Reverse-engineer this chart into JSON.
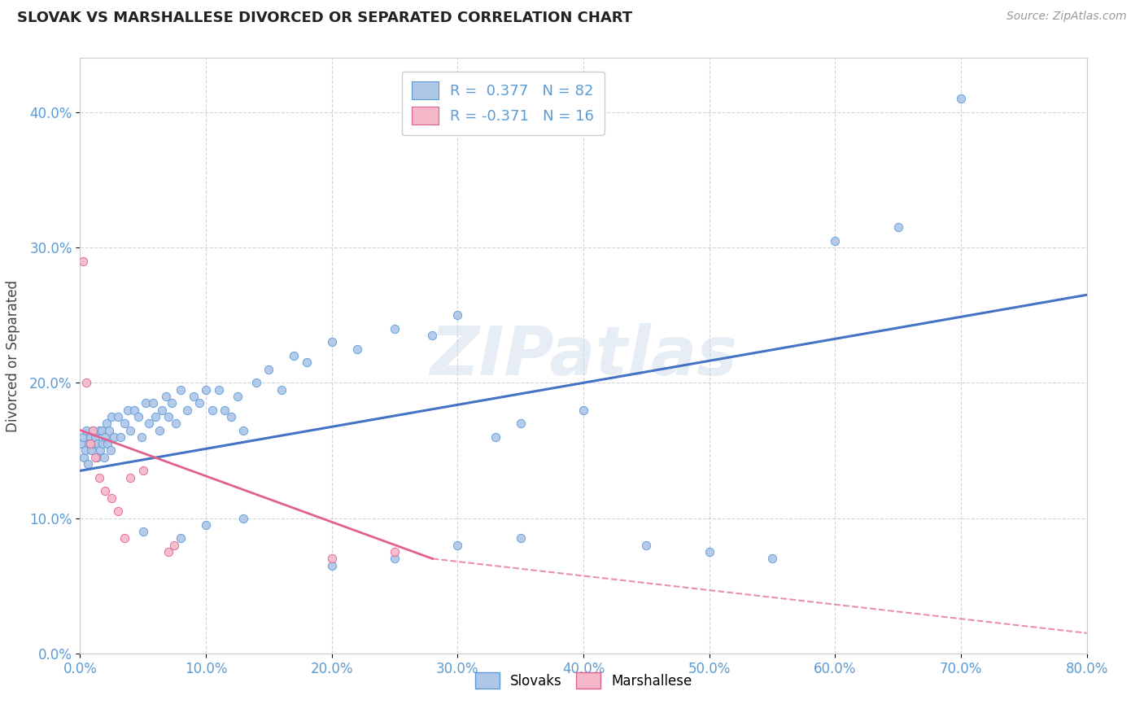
{
  "title": "SLOVAK VS MARSHALLESE DIVORCED OR SEPARATED CORRELATION CHART",
  "source": "Source: ZipAtlas.com",
  "ylabel": "Divorced or Separated",
  "xlim": [
    0.0,
    80.0
  ],
  "ylim": [
    0.0,
    44.0
  ],
  "yticks": [
    0.0,
    10.0,
    20.0,
    30.0,
    40.0
  ],
  "xticks": [
    0.0,
    10.0,
    20.0,
    30.0,
    40.0,
    50.0,
    60.0,
    70.0,
    80.0
  ],
  "blue_color": "#aec6e8",
  "pink_color": "#f4b8c8",
  "blue_edge_color": "#5b9bd5",
  "pink_edge_color": "#e06090",
  "blue_line_color": "#4472c4",
  "pink_line_color": "#e06090",
  "legend_blue_r": "0.377",
  "legend_blue_n": "82",
  "legend_pink_r": "-0.371",
  "legend_pink_n": "16",
  "watermark": "ZIPatlas",
  "blue_scatter": [
    [
      0.1,
      15.5
    ],
    [
      0.2,
      16.0
    ],
    [
      0.3,
      14.5
    ],
    [
      0.4,
      15.0
    ],
    [
      0.5,
      16.5
    ],
    [
      0.6,
      14.0
    ],
    [
      0.7,
      15.5
    ],
    [
      0.8,
      16.0
    ],
    [
      0.9,
      15.0
    ],
    [
      1.0,
      16.5
    ],
    [
      1.1,
      15.5
    ],
    [
      1.2,
      16.0
    ],
    [
      1.3,
      14.5
    ],
    [
      1.4,
      15.5
    ],
    [
      1.5,
      16.5
    ],
    [
      1.6,
      15.0
    ],
    [
      1.7,
      16.5
    ],
    [
      1.8,
      15.5
    ],
    [
      1.9,
      14.5
    ],
    [
      2.0,
      16.0
    ],
    [
      2.1,
      17.0
    ],
    [
      2.2,
      15.5
    ],
    [
      2.3,
      16.5
    ],
    [
      2.4,
      15.0
    ],
    [
      2.5,
      17.5
    ],
    [
      2.7,
      16.0
    ],
    [
      3.0,
      17.5
    ],
    [
      3.2,
      16.0
    ],
    [
      3.5,
      17.0
    ],
    [
      3.8,
      18.0
    ],
    [
      4.0,
      16.5
    ],
    [
      4.3,
      18.0
    ],
    [
      4.6,
      17.5
    ],
    [
      4.9,
      16.0
    ],
    [
      5.2,
      18.5
    ],
    [
      5.5,
      17.0
    ],
    [
      5.8,
      18.5
    ],
    [
      6.0,
      17.5
    ],
    [
      6.3,
      16.5
    ],
    [
      6.5,
      18.0
    ],
    [
      6.8,
      19.0
    ],
    [
      7.0,
      17.5
    ],
    [
      7.3,
      18.5
    ],
    [
      7.6,
      17.0
    ],
    [
      8.0,
      19.5
    ],
    [
      8.5,
      18.0
    ],
    [
      9.0,
      19.0
    ],
    [
      9.5,
      18.5
    ],
    [
      10.0,
      19.5
    ],
    [
      10.5,
      18.0
    ],
    [
      11.0,
      19.5
    ],
    [
      11.5,
      18.0
    ],
    [
      12.0,
      17.5
    ],
    [
      12.5,
      19.0
    ],
    [
      13.0,
      16.5
    ],
    [
      14.0,
      20.0
    ],
    [
      15.0,
      21.0
    ],
    [
      16.0,
      19.5
    ],
    [
      17.0,
      22.0
    ],
    [
      18.0,
      21.5
    ],
    [
      20.0,
      23.0
    ],
    [
      22.0,
      22.5
    ],
    [
      25.0,
      24.0
    ],
    [
      28.0,
      23.5
    ],
    [
      30.0,
      25.0
    ],
    [
      33.0,
      16.0
    ],
    [
      35.0,
      17.0
    ],
    [
      40.0,
      18.0
    ],
    [
      45.0,
      8.0
    ],
    [
      50.0,
      7.5
    ],
    [
      55.0,
      7.0
    ],
    [
      60.0,
      30.5
    ],
    [
      65.0,
      31.5
    ],
    [
      70.0,
      41.0
    ],
    [
      5.0,
      9.0
    ],
    [
      8.0,
      8.5
    ],
    [
      10.0,
      9.5
    ],
    [
      13.0,
      10.0
    ],
    [
      20.0,
      6.5
    ],
    [
      25.0,
      7.0
    ],
    [
      30.0,
      8.0
    ],
    [
      35.0,
      8.5
    ]
  ],
  "pink_scatter": [
    [
      0.2,
      29.0
    ],
    [
      0.5,
      20.0
    ],
    [
      0.8,
      15.5
    ],
    [
      1.0,
      16.5
    ],
    [
      1.2,
      14.5
    ],
    [
      1.5,
      13.0
    ],
    [
      2.0,
      12.0
    ],
    [
      2.5,
      11.5
    ],
    [
      3.0,
      10.5
    ],
    [
      3.5,
      8.5
    ],
    [
      4.0,
      13.0
    ],
    [
      5.0,
      13.5
    ],
    [
      7.0,
      7.5
    ],
    [
      7.5,
      8.0
    ],
    [
      20.0,
      7.0
    ],
    [
      25.0,
      7.5
    ]
  ],
  "blue_trend": {
    "x_start": 0.0,
    "y_start": 13.5,
    "x_end": 80.0,
    "y_end": 26.5
  },
  "pink_trend_solid": {
    "x_start": 0.0,
    "y_start": 16.5,
    "x_end": 28.0,
    "y_end": 7.0
  },
  "pink_trend_dash": {
    "x_start": 28.0,
    "y_start": 7.0,
    "x_end": 80.0,
    "y_end": 1.5
  },
  "background_color": "#ffffff",
  "grid_color": "#d0d0d0",
  "tick_color": "#5b9bd5",
  "title_fontsize": 13,
  "axis_fontsize": 12,
  "legend_fontsize": 13
}
